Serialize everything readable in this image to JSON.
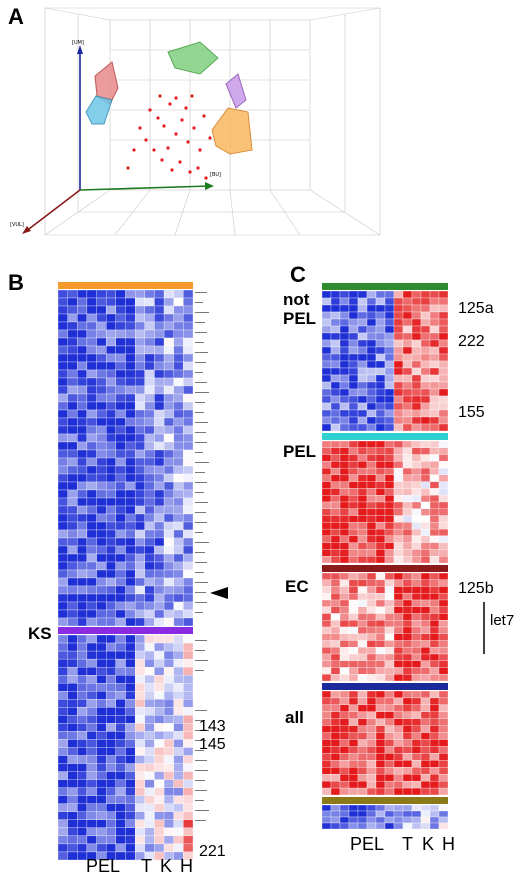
{
  "panels": {
    "a": {
      "letter": "A"
    },
    "b": {
      "letter": "B"
    },
    "c": {
      "letter": "C"
    }
  },
  "panel_a": {
    "axis_labels": [
      "[UM]",
      "[BU]",
      "[VUL]"
    ]
  },
  "panel_b": {
    "cluster_label": "KS",
    "annotations": [
      "143",
      "145",
      "221"
    ],
    "x_labels": {
      "pel": "PEL",
      "t": "T",
      "k": "K",
      "h": "H"
    }
  },
  "panel_c": {
    "group_labels": {
      "not_pel": "not\nPEL",
      "pel": "PEL",
      "ec": "EC",
      "all": "all"
    },
    "annotations": {
      "a125a": "125a",
      "a222": "222",
      "a155": "155",
      "a125b": "125b",
      "let7": "let7"
    },
    "x_labels": {
      "pel": "PEL",
      "t": "T",
      "k": "K",
      "h": "H"
    }
  },
  "colors": {
    "high": "#e41a1c",
    "low": "#1f2fd6",
    "mid": "#ffffff",
    "orange_bar": "#f39a2b",
    "purple_bar": "#8a2be2",
    "green_bar": "#2e8b2e",
    "cyan_bar": "#2fd0d0",
    "darkred_bar": "#8b1a1a",
    "navy_bar": "#1a2a9a",
    "olive_bar": "#8b7a1a"
  }
}
